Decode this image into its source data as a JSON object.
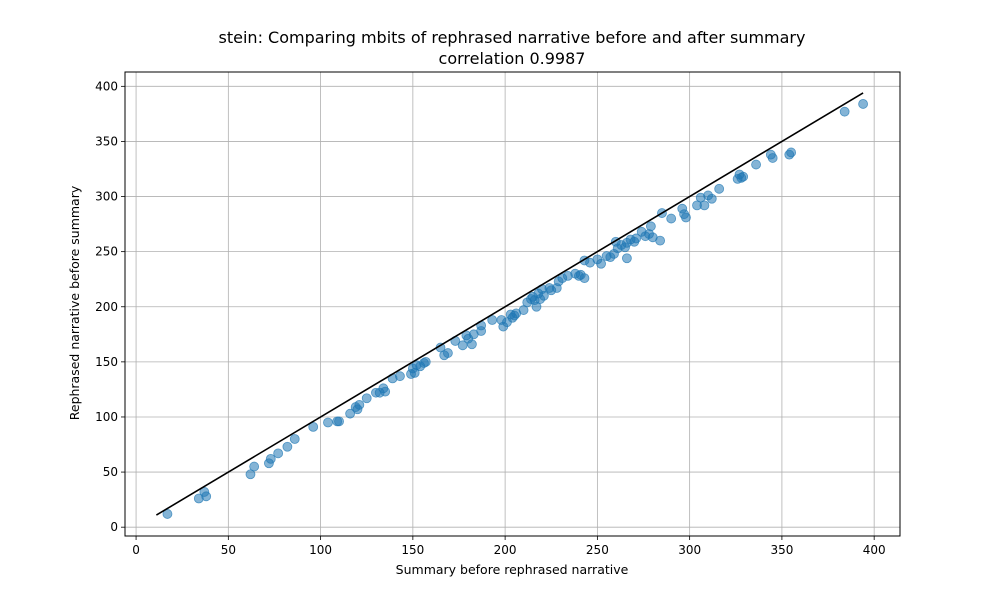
{
  "chart_data": {
    "type": "scatter",
    "title": "stein: Comparing mbits of rephrased narrative before and after summary",
    "subtitle": "correlation 0.9987",
    "xlabel": "Summary before rephrased narrative",
    "ylabel": "Rephrased narrative before summary",
    "xlim": [
      -6,
      414
    ],
    "ylim": [
      -8,
      413
    ],
    "xticks": [
      0,
      50,
      100,
      150,
      200,
      250,
      300,
      350,
      400
    ],
    "yticks": [
      0,
      50,
      100,
      150,
      200,
      250,
      300,
      350,
      400
    ],
    "grid": true,
    "point_color": "#1f77b4",
    "line_color": "#000000",
    "reference_line": {
      "x": [
        11,
        394
      ],
      "y": [
        11,
        394
      ]
    },
    "points": [
      [
        17,
        12
      ],
      [
        34,
        26
      ],
      [
        37,
        32
      ],
      [
        38,
        28
      ],
      [
        62,
        48
      ],
      [
        64,
        55
      ],
      [
        72,
        58
      ],
      [
        73,
        62
      ],
      [
        77,
        67
      ],
      [
        82,
        73
      ],
      [
        86,
        80
      ],
      [
        96,
        91
      ],
      [
        104,
        95
      ],
      [
        109,
        96
      ],
      [
        110,
        96
      ],
      [
        116,
        103
      ],
      [
        119,
        109
      ],
      [
        120,
        107
      ],
      [
        121,
        111
      ],
      [
        125,
        117
      ],
      [
        130,
        122
      ],
      [
        132,
        122
      ],
      [
        134,
        126
      ],
      [
        135,
        123
      ],
      [
        139,
        135
      ],
      [
        143,
        137
      ],
      [
        149,
        139
      ],
      [
        150,
        144
      ],
      [
        151,
        140
      ],
      [
        152,
        147
      ],
      [
        154,
        146
      ],
      [
        156,
        149
      ],
      [
        157,
        150
      ],
      [
        165,
        163
      ],
      [
        167,
        156
      ],
      [
        169,
        158
      ],
      [
        173,
        169
      ],
      [
        177,
        165
      ],
      [
        179,
        174
      ],
      [
        180,
        171
      ],
      [
        182,
        166
      ],
      [
        183,
        175
      ],
      [
        187,
        178
      ],
      [
        187,
        183
      ],
      [
        193,
        188
      ],
      [
        198,
        188
      ],
      [
        199,
        182
      ],
      [
        201,
        186
      ],
      [
        203,
        193
      ],
      [
        204,
        190
      ],
      [
        205,
        192
      ],
      [
        206,
        194
      ],
      [
        210,
        197
      ],
      [
        212,
        204
      ],
      [
        214,
        207
      ],
      [
        215,
        209
      ],
      [
        216,
        206
      ],
      [
        217,
        200
      ],
      [
        218,
        212
      ],
      [
        219,
        207
      ],
      [
        220,
        216
      ],
      [
        221,
        210
      ],
      [
        224,
        217
      ],
      [
        225,
        215
      ],
      [
        228,
        217
      ],
      [
        229,
        223
      ],
      [
        231,
        226
      ],
      [
        234,
        228
      ],
      [
        238,
        230
      ],
      [
        240,
        228
      ],
      [
        241,
        229
      ],
      [
        243,
        226
      ],
      [
        243,
        242
      ],
      [
        246,
        240
      ],
      [
        250,
        243
      ],
      [
        252,
        239
      ],
      [
        255,
        246
      ],
      [
        257,
        245
      ],
      [
        259,
        248
      ],
      [
        260,
        259
      ],
      [
        261,
        253
      ],
      [
        263,
        256
      ],
      [
        265,
        254
      ],
      [
        266,
        258
      ],
      [
        266,
        244
      ],
      [
        268,
        261
      ],
      [
        270,
        259
      ],
      [
        271,
        262
      ],
      [
        274,
        268
      ],
      [
        276,
        264
      ],
      [
        278,
        266
      ],
      [
        279,
        273
      ],
      [
        280,
        263
      ],
      [
        284,
        260
      ],
      [
        285,
        285
      ],
      [
        290,
        280
      ],
      [
        296,
        289
      ],
      [
        297,
        284
      ],
      [
        298,
        281
      ],
      [
        304,
        292
      ],
      [
        306,
        299
      ],
      [
        308,
        292
      ],
      [
        310,
        301
      ],
      [
        312,
        298
      ],
      [
        316,
        307
      ],
      [
        326,
        316
      ],
      [
        327,
        320
      ],
      [
        328,
        317
      ],
      [
        329,
        318
      ],
      [
        336,
        329
      ],
      [
        344,
        338
      ],
      [
        345,
        335
      ],
      [
        354,
        338
      ],
      [
        355,
        340
      ],
      [
        384,
        377
      ],
      [
        394,
        384
      ]
    ]
  }
}
